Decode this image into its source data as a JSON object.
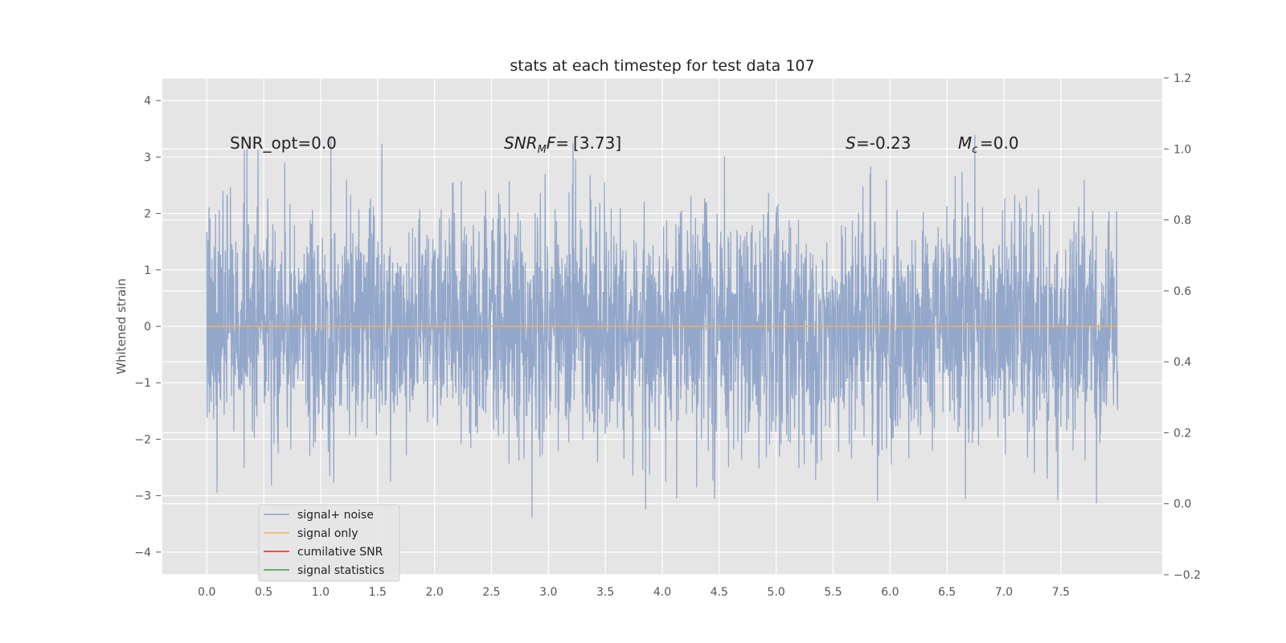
{
  "chart_data": {
    "type": "line",
    "title": "stats at each timestep for test data 107",
    "ylabel": "Whitened strain",
    "xlabel": "",
    "xlim": [
      -0.39,
      8.39
    ],
    "ylim": [
      -4.4,
      4.4
    ],
    "y2lim": [
      -0.2,
      1.2
    ],
    "grid": true,
    "legend_position": "lower-left",
    "x_ticks": [
      "0.0",
      "0.5",
      "1.0",
      "1.5",
      "2.0",
      "2.5",
      "3.0",
      "3.5",
      "4.0",
      "4.5",
      "5.0",
      "5.5",
      "6.0",
      "6.5",
      "7.0",
      "7.5"
    ],
    "y_ticks": [
      "4",
      "3",
      "2",
      "1",
      "0",
      "−1",
      "−2",
      "−3",
      "−4"
    ],
    "y2_ticks": [
      "1.2",
      "1.0",
      "0.8",
      "0.6",
      "0.4",
      "0.2",
      "0.0",
      "−0.2"
    ],
    "series": [
      {
        "name": "signal+ noise",
        "color": "#8ea3c8",
        "description_values": "whitened noise, approx. 0 mean, ~1 std, x from 0.0 to 8.0"
      },
      {
        "name": "signal only",
        "color": "#f0b35a",
        "values_constant": 0.0
      },
      {
        "name": "cumilative SNR",
        "color": "#d62a1e"
      },
      {
        "name": "signal statistics",
        "color": "#3a9a44"
      }
    ],
    "annotations": {
      "snr_opt": "SNR_opt=0.0",
      "snr_mf": "[3.73]",
      "s_val": "=-0.23",
      "mc_val": "=0.0"
    }
  }
}
